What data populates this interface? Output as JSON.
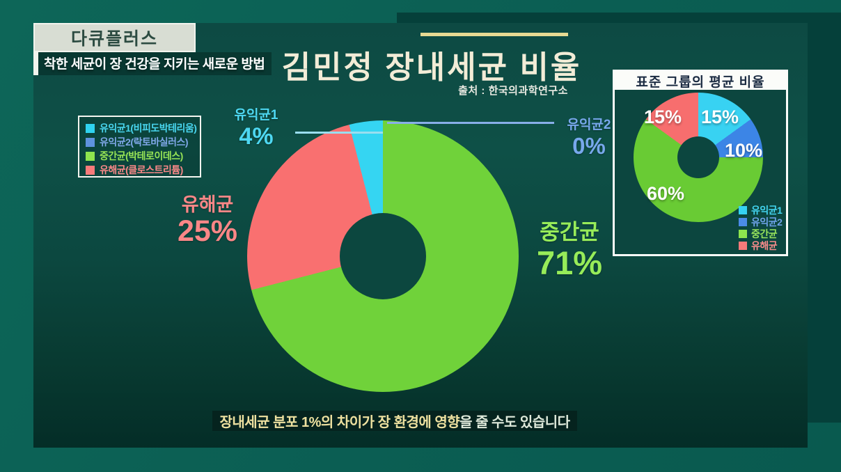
{
  "program": {
    "badge": "다큐플러스",
    "subtitle": "착한 세균이 장 건강을 지키는 새로운 방법"
  },
  "header": {
    "title": "김민정 장내세균 비율",
    "source": "출처 : 한국의과학연구소"
  },
  "caption": {
    "highlight": "장내세균 분포 1%의 차이가 장 환경에 영향",
    "rest": "을 줄 수도 있습니다"
  },
  "chart_data": [
    {
      "type": "pie",
      "donut": true,
      "title": "김민정 장내세균 비율",
      "unit": "%",
      "start_angle_deg": 0,
      "direction": "clockwise",
      "slices": [
        {
          "label": "중간균",
          "value": 71,
          "value_label": "71%",
          "color": "#70d23a"
        },
        {
          "label": "유해균",
          "value": 25,
          "value_label": "25%",
          "color": "#f97070"
        },
        {
          "label": "유익균1",
          "value": 4,
          "value_label": "4%",
          "color": "#35d5f2"
        },
        {
          "label": "유익균2",
          "value": 0,
          "value_label": "0%",
          "color": "#4387e2"
        }
      ],
      "legend": [
        {
          "label": "유익균1(비피도박테리움)",
          "swatch": "#2fd3f0",
          "text_color": "#49d6ef"
        },
        {
          "label": "유익균2(락토바실러스)",
          "swatch": "#5e93de",
          "text_color": "#7fa7e8"
        },
        {
          "label": "중간균(박테로이데스)",
          "swatch": "#8ee44e",
          "text_color": "#97e455"
        },
        {
          "label": "유해균(클로스트리튬)",
          "swatch": "#f87a7a",
          "text_color": "#fa8888"
        }
      ]
    },
    {
      "type": "pie",
      "donut": true,
      "title": "표준 그룹의 평균 비율",
      "unit": "%",
      "start_angle_deg": 0,
      "direction": "clockwise",
      "slices": [
        {
          "label": "유익균1",
          "value": 15,
          "value_label": "15%",
          "color": "#38d2f2"
        },
        {
          "label": "유익균2",
          "value": 10,
          "value_label": "10%",
          "color": "#3c85e6"
        },
        {
          "label": "중간균",
          "value": 60,
          "value_label": "60%",
          "color": "#69cb34"
        },
        {
          "label": "유해균",
          "value": 15,
          "value_label": "15%",
          "color": "#f76e6e"
        }
      ],
      "legend": [
        {
          "label": "유익균1",
          "swatch": "#35d2f2",
          "text_color": "#43d5f0"
        },
        {
          "label": "유익균2",
          "swatch": "#4b8be8",
          "text_color": "#6fa3ea"
        },
        {
          "label": "중간균",
          "swatch": "#8ee44e",
          "text_color": "#97e45c"
        },
        {
          "label": "유해균",
          "swatch": "#f87a7a",
          "text_color": "#f98c8c"
        }
      ]
    }
  ]
}
